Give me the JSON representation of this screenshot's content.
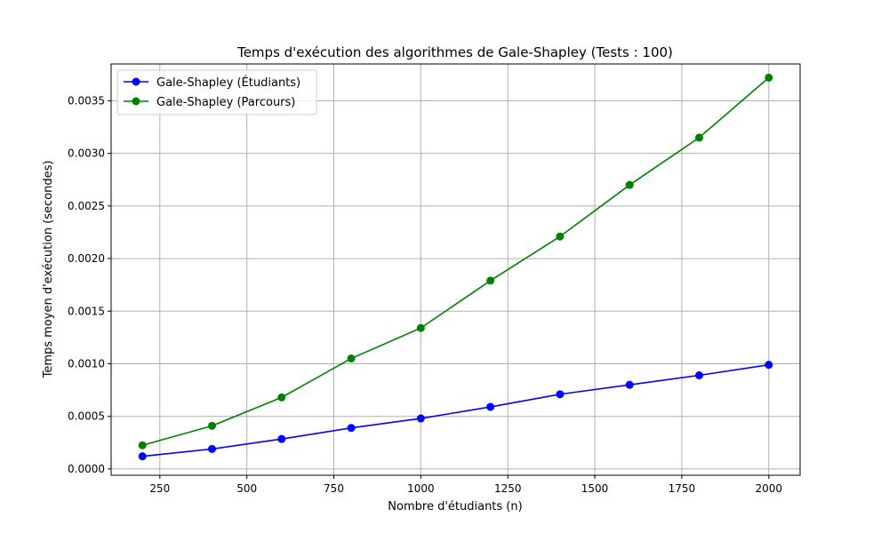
{
  "chart_data": {
    "type": "line",
    "title": "Temps d'exécution des algorithmes de Gale-Shapley (Tests : 100)",
    "xlabel": "Nombre d'étudiants (n)",
    "ylabel": "Temps moyen d'exécution (secondes)",
    "xlim": [
      110,
      2090
    ],
    "ylim": [
      -6e-05,
      0.00385
    ],
    "xticks": [
      250,
      500,
      750,
      1000,
      1250,
      1500,
      1750,
      2000
    ],
    "xtick_labels": [
      "250",
      "500",
      "750",
      "1000",
      "1250",
      "1500",
      "1750",
      "2000"
    ],
    "yticks": [
      0.0,
      0.0005,
      0.001,
      0.0015,
      0.002,
      0.0025,
      0.003,
      0.0035
    ],
    "ytick_labels": [
      "0.0000",
      "0.0005",
      "0.0010",
      "0.0015",
      "0.0020",
      "0.0025",
      "0.0030",
      "0.0035"
    ],
    "grid": true,
    "legend_position": "top-left",
    "x": [
      200,
      400,
      600,
      800,
      1000,
      1200,
      1400,
      1600,
      1800,
      2000
    ],
    "series": [
      {
        "name": "Gale-Shapley (Étudiants)",
        "color": "#0000ff",
        "values": [
          0.00012,
          0.00019,
          0.000285,
          0.00039,
          0.00048,
          0.00059,
          0.00071,
          0.0008,
          0.00089,
          0.00099
        ]
      },
      {
        "name": "Gale-Shapley (Parcours)",
        "color": "#008000",
        "values": [
          0.000225,
          0.00041,
          0.00068,
          0.00105,
          0.00134,
          0.00179,
          0.00221,
          0.0027,
          0.00315,
          0.00372
        ]
      }
    ]
  }
}
